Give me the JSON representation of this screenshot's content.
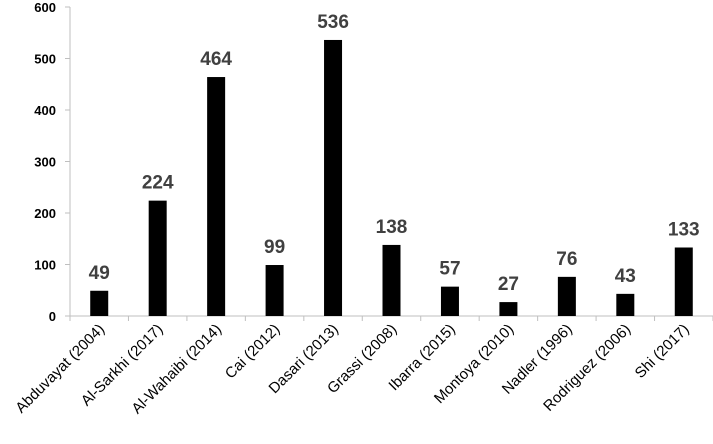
{
  "chart_data": {
    "type": "bar",
    "categories": [
      "Abduvayat (2004)",
      "Al-Sarkhi (2017)",
      "Al-Wahaibi (2014)",
      "Cai (2012)",
      "Dasari (2013)",
      "Grassi (2008)",
      "Ibarra (2015)",
      "Montoya (2010)",
      "Nadler (1996)",
      "Rodriguez (2006)",
      "Shi (2017)"
    ],
    "values": [
      49,
      224,
      464,
      99,
      536,
      138,
      57,
      27,
      76,
      43,
      133
    ],
    "data_labels": [
      "49",
      "224",
      "464",
      "99",
      "536",
      "138",
      "57",
      "27",
      "76",
      "43",
      "133"
    ],
    "y_ticks": [
      0,
      100,
      200,
      300,
      400,
      500,
      600
    ],
    "y_tick_labels": [
      "0",
      "100",
      "200",
      "300",
      "400",
      "500",
      "600"
    ],
    "ylim": [
      0,
      600
    ],
    "title": "",
    "xlabel": "",
    "ylabel": "",
    "grid": false,
    "legend": false,
    "bar_color": "#000000",
    "label_color": "#404040",
    "axis_color": "#bfbfbf"
  }
}
